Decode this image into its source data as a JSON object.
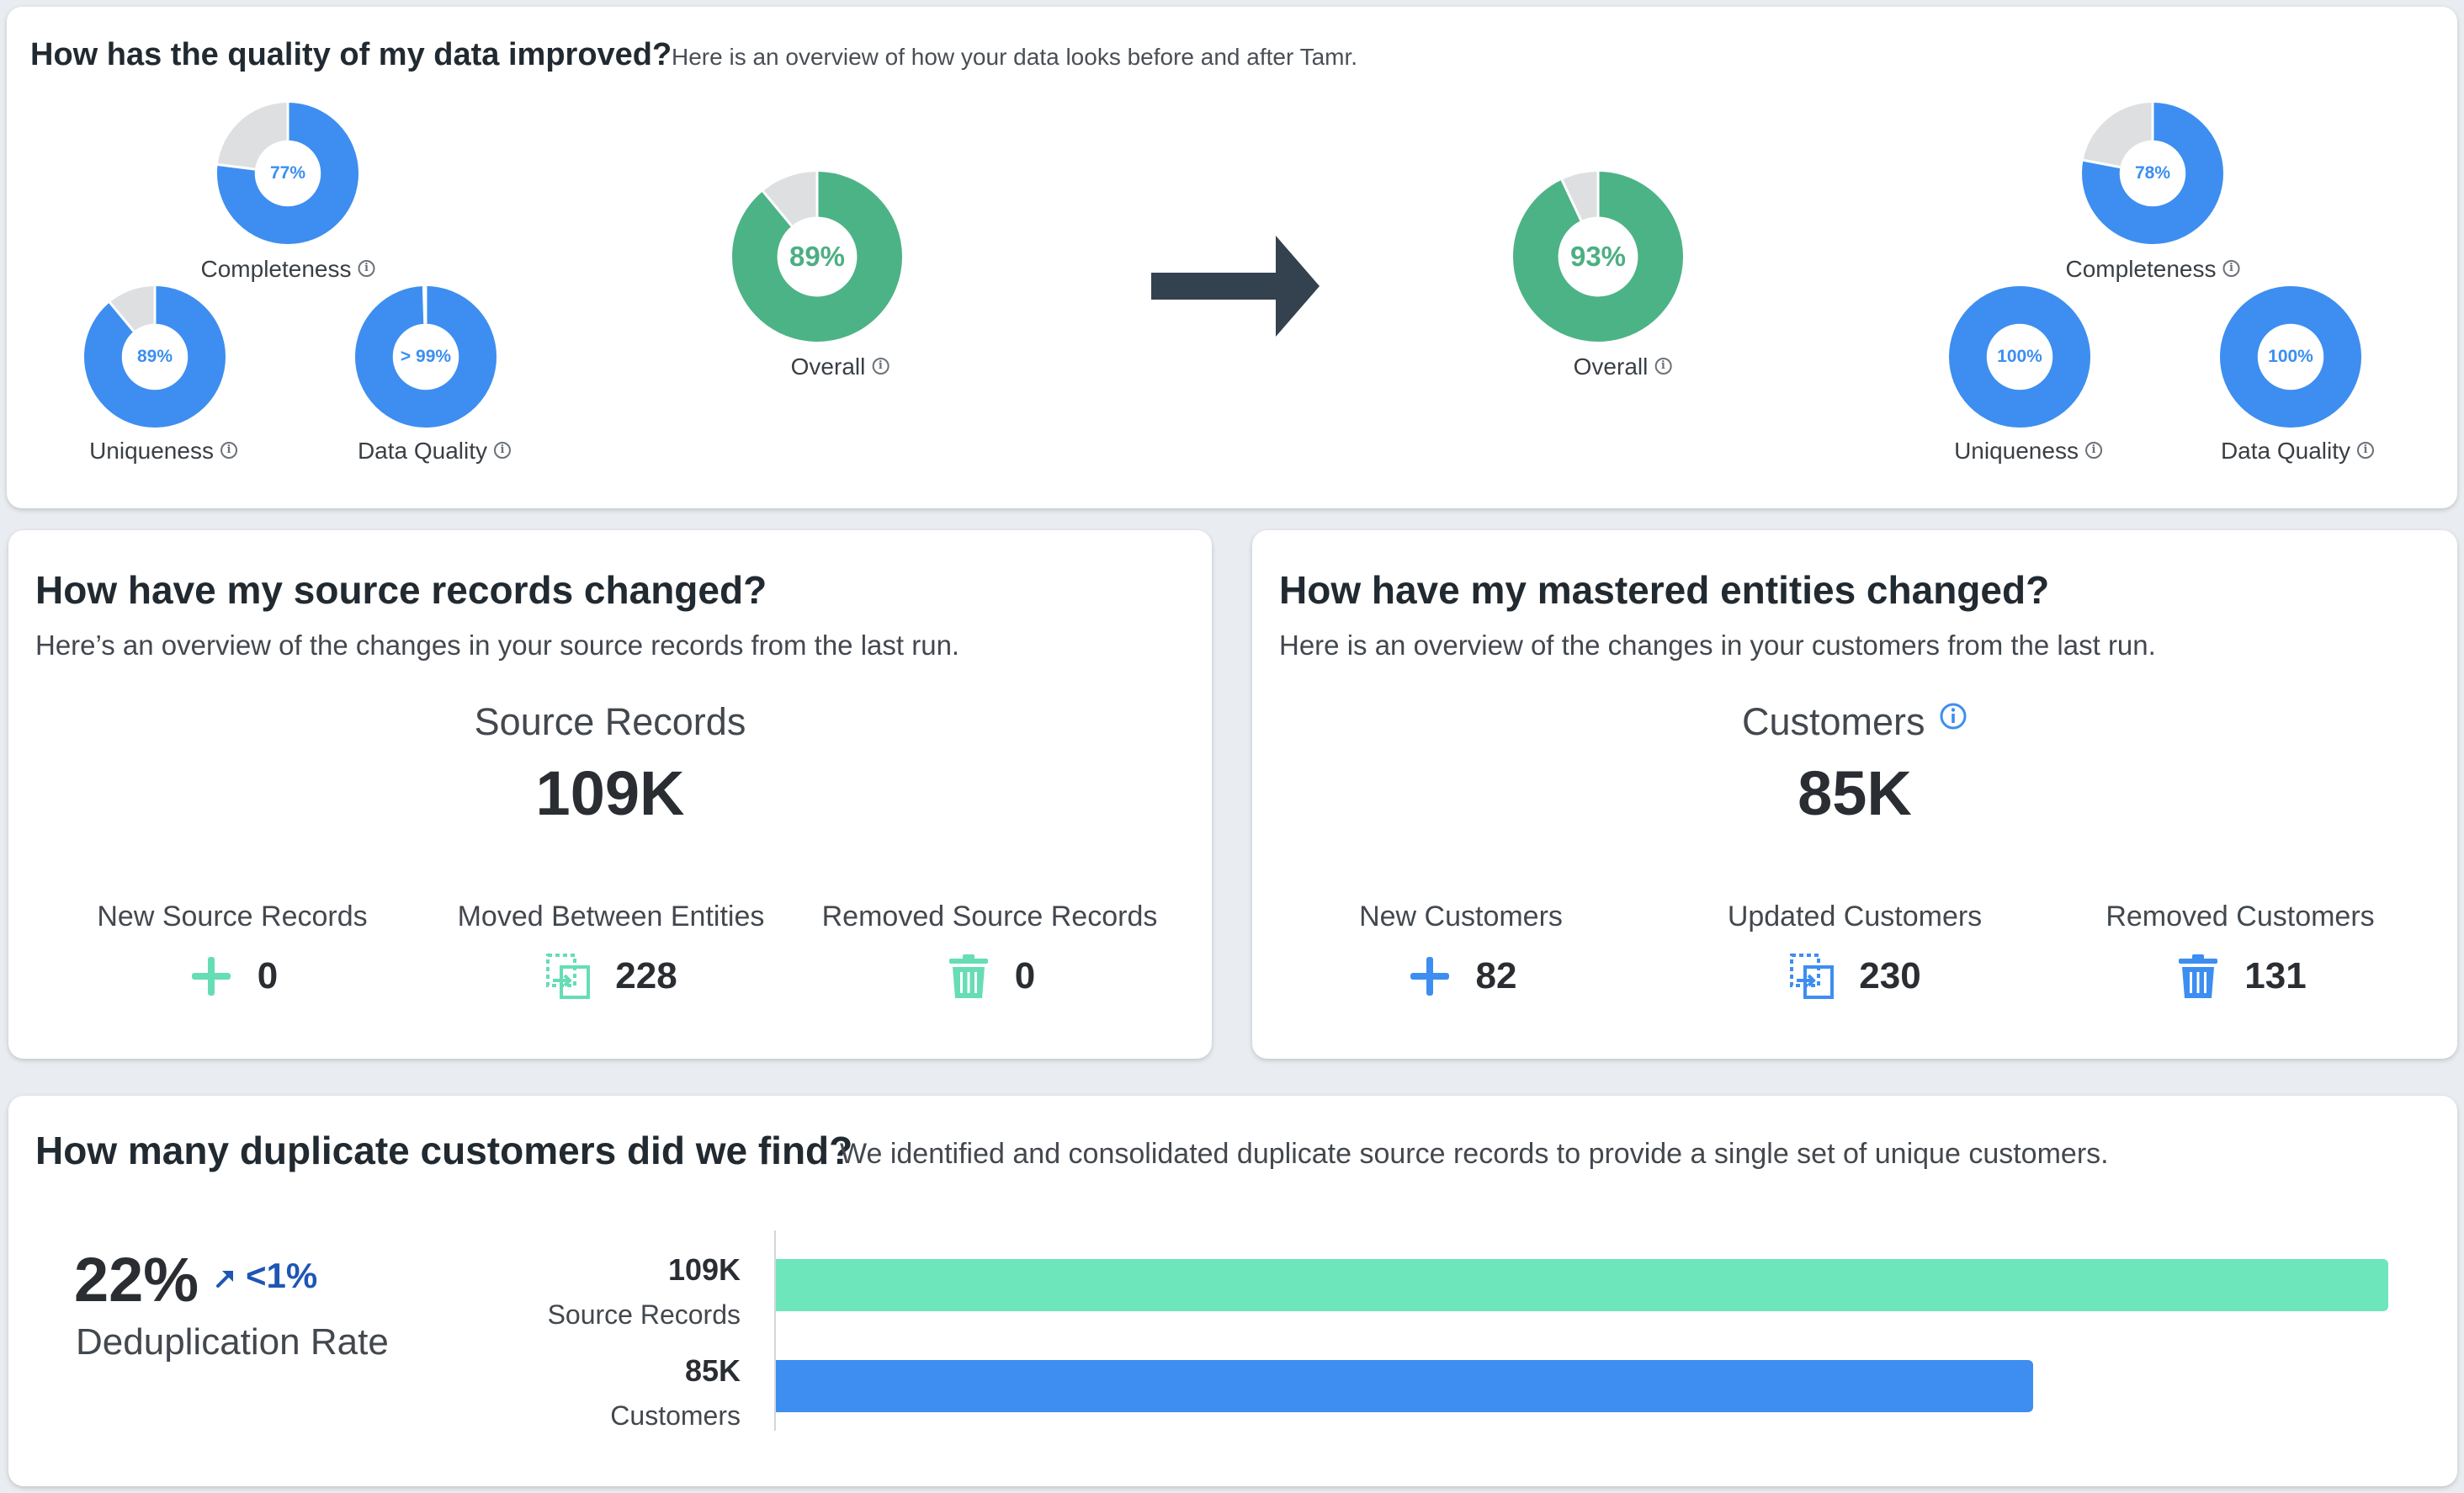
{
  "quality": {
    "title": "How has the quality of my data improved?",
    "subtitle": "Here is an overview of how your data looks before and after Tamr.",
    "before": {
      "completeness": {
        "label": "Completeness",
        "pct_text": "77%",
        "value": 0.77
      },
      "uniqueness": {
        "label": "Uniqueness",
        "pct_text": "89%",
        "value": 0.89
      },
      "data_quality": {
        "label": "Data Quality",
        "pct_text": "> 99%",
        "value": 0.995
      },
      "overall": {
        "label": "Overall",
        "pct_text": "89%",
        "value": 0.89
      }
    },
    "after": {
      "completeness": {
        "label": "Completeness",
        "pct_text": "78%",
        "value": 0.78
      },
      "uniqueness": {
        "label": "Uniqueness",
        "pct_text": "100%",
        "value": 1.0
      },
      "data_quality": {
        "label": "Data Quality",
        "pct_text": "100%",
        "value": 1.0
      },
      "overall": {
        "label": "Overall",
        "pct_text": "93%",
        "value": 0.93
      }
    },
    "colors": {
      "metric": "#3d8ef0",
      "overall": "#4cb386",
      "remainder": "#dedfe1",
      "arrow": "#34414f"
    }
  },
  "source": {
    "title": "How have my source records changed?",
    "subtitle": "Here’s an overview of the changes in your source records from the last run.",
    "center_label": "Source Records",
    "center_value": "109K",
    "stats": [
      {
        "label": "New Source Records",
        "value": "0",
        "icon": "plus-icon"
      },
      {
        "label": "Moved Between Entities",
        "value": "228",
        "icon": "move-icon"
      },
      {
        "label": "Removed Source Records",
        "value": "0",
        "icon": "trash-icon"
      }
    ],
    "icon_color": "#66ddb4"
  },
  "entities": {
    "title": "How have my mastered entities changed?",
    "subtitle": "Here is an overview of the changes in your customers from the last run.",
    "center_label": "Customers",
    "center_value": "85K",
    "stats": [
      {
        "label": "New Customers",
        "value": "82",
        "icon": "plus-icon"
      },
      {
        "label": "Updated Customers",
        "value": "230",
        "icon": "move-icon"
      },
      {
        "label": "Removed Customers",
        "value": "131",
        "icon": "trash-icon"
      }
    ],
    "icon_color": "#3d8ef0"
  },
  "duplicates": {
    "title": "How many duplicate customers did we find?",
    "subtitle": "We identified and consolidated duplicate source records to provide a single set of unique customers.",
    "rate_value": "22%",
    "rate_change": "<1%",
    "rate_label": "Deduplication Rate"
  },
  "chart_data": {
    "type": "bar",
    "orientation": "horizontal",
    "categories": [
      "Source Records",
      "Customers"
    ],
    "values": [
      109000,
      85000
    ],
    "value_labels": [
      "109K",
      "85K"
    ],
    "colors": [
      "#6de6bb",
      "#3d8ef0"
    ],
    "xlim": [
      0,
      109000
    ]
  }
}
